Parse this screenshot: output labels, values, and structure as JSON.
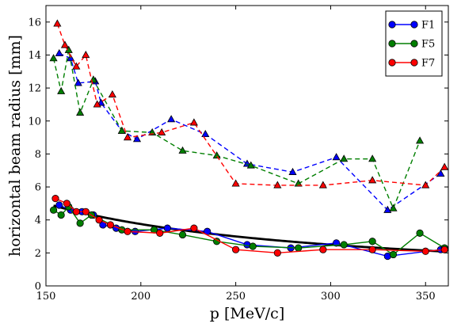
{
  "chart_data": {
    "type": "line",
    "xlabel": "p [MeV/c]",
    "ylabel": "horizontal beam radius [mm]",
    "xlim": [
      150,
      362
    ],
    "ylim": [
      0,
      17
    ],
    "xticks": [
      150,
      200,
      250,
      300,
      350
    ],
    "yticks": [
      0,
      2,
      4,
      6,
      8,
      10,
      12,
      14,
      16
    ],
    "grid": false,
    "legend_position": "top-right",
    "legend": [
      "F1",
      "F5",
      "F7"
    ],
    "colors": {
      "F1": "#0000ff",
      "F5": "#007f00",
      "F7": "#ff0000",
      "fit": "#000000"
    },
    "series": [
      {
        "name": "F1",
        "marker": "triangle",
        "linestyle": "dashed",
        "color": "#0000ff",
        "x": [
          157,
          163,
          167,
          176,
          179,
          190,
          198,
          216,
          234,
          256,
          280,
          303,
          330,
          358
        ],
        "y": [
          14.1,
          13.8,
          12.3,
          12.4,
          11.1,
          9.4,
          8.9,
          10.1,
          9.2,
          7.4,
          6.9,
          7.8,
          4.6,
          6.8
        ]
      },
      {
        "name": "F5",
        "marker": "triangle",
        "linestyle": "dashed",
        "color": "#007f00",
        "x": [
          154,
          158,
          162,
          168,
          175,
          190,
          206,
          222,
          240,
          258,
          283,
          307,
          322,
          333,
          347
        ],
        "y": [
          13.8,
          11.8,
          14.3,
          10.5,
          12.5,
          9.4,
          9.3,
          8.2,
          7.9,
          7.3,
          6.2,
          7.7,
          7.7,
          4.7,
          8.8
        ]
      },
      {
        "name": "F7",
        "marker": "triangle",
        "linestyle": "dashed",
        "color": "#ff0000",
        "x": [
          156,
          160,
          166,
          171,
          177,
          185,
          193,
          211,
          228,
          250,
          272,
          296,
          322,
          350,
          360
        ],
        "y": [
          15.9,
          14.6,
          13.3,
          14.0,
          11.0,
          11.6,
          9.0,
          9.3,
          9.9,
          6.2,
          6.1,
          6.1,
          6.4,
          6.1,
          7.2
        ]
      },
      {
        "name": "F1",
        "marker": "circle",
        "linestyle": "solid",
        "color": "#0000ff",
        "x": [
          157,
          163,
          169,
          175,
          180,
          187,
          197,
          214,
          235,
          256,
          279,
          303,
          330,
          358
        ],
        "y": [
          4.9,
          4.6,
          4.5,
          4.3,
          3.7,
          3.5,
          3.3,
          3.5,
          3.3,
          2.5,
          2.3,
          2.6,
          1.8,
          2.2
        ]
      },
      {
        "name": "F5",
        "marker": "circle",
        "linestyle": "solid",
        "color": "#007f00",
        "x": [
          154,
          158,
          162,
          168,
          174,
          190,
          207,
          222,
          240,
          259,
          283,
          307,
          322,
          333,
          347,
          360
        ],
        "y": [
          4.6,
          4.3,
          4.8,
          3.8,
          4.3,
          3.4,
          3.4,
          3.1,
          2.7,
          2.4,
          2.3,
          2.5,
          2.7,
          1.9,
          3.2,
          2.3
        ]
      },
      {
        "name": "F7",
        "marker": "circle",
        "linestyle": "solid",
        "color": "#ff0000",
        "x": [
          155,
          161,
          166,
          171,
          178,
          184,
          193,
          210,
          228,
          250,
          272,
          296,
          322,
          350,
          360
        ],
        "y": [
          5.3,
          5.0,
          4.5,
          4.5,
          4.0,
          3.7,
          3.3,
          3.2,
          3.5,
          2.2,
          2.0,
          2.2,
          2.2,
          2.1,
          2.2
        ]
      }
    ],
    "fit": {
      "coefficients": [
        750,
        -1
      ],
      "formula": "y = 750/x",
      "color": "#000000"
    }
  }
}
